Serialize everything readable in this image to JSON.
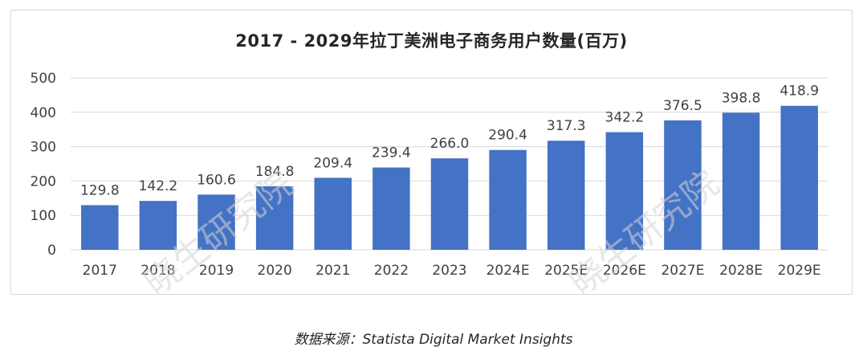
{
  "chart_data": {
    "type": "bar",
    "title": "2017 - 2029年拉丁美洲电子商务用户数量(百万)",
    "categories": [
      "2017",
      "2018",
      "2019",
      "2020",
      "2021",
      "2022",
      "2023",
      "2024E",
      "2025E",
      "2026E",
      "2027E",
      "2028E",
      "2029E"
    ],
    "series": [
      {
        "values": [
          129.8,
          142.2,
          160.6,
          184.8,
          209.4,
          239.4,
          266.0,
          290.4,
          317.3,
          342.2,
          376.5,
          398.8,
          418.9
        ]
      }
    ],
    "data_labels": [
      "129.8",
      "142.2",
      "160.6",
      "184.8",
      "209.4",
      "239.4",
      "266.0",
      "290.4",
      "317.3",
      "342.2",
      "376.5",
      "398.8",
      "418.9"
    ],
    "ylim": [
      0,
      500
    ],
    "yticks": [
      0,
      100,
      200,
      300,
      400,
      500
    ],
    "grid": true,
    "bar_color": "#4472c4",
    "grid_color": "#d9d9d9"
  },
  "watermark": {
    "text": "晓生研究院"
  },
  "source": {
    "text": "数据来源：Statista Digital Market Insights"
  }
}
